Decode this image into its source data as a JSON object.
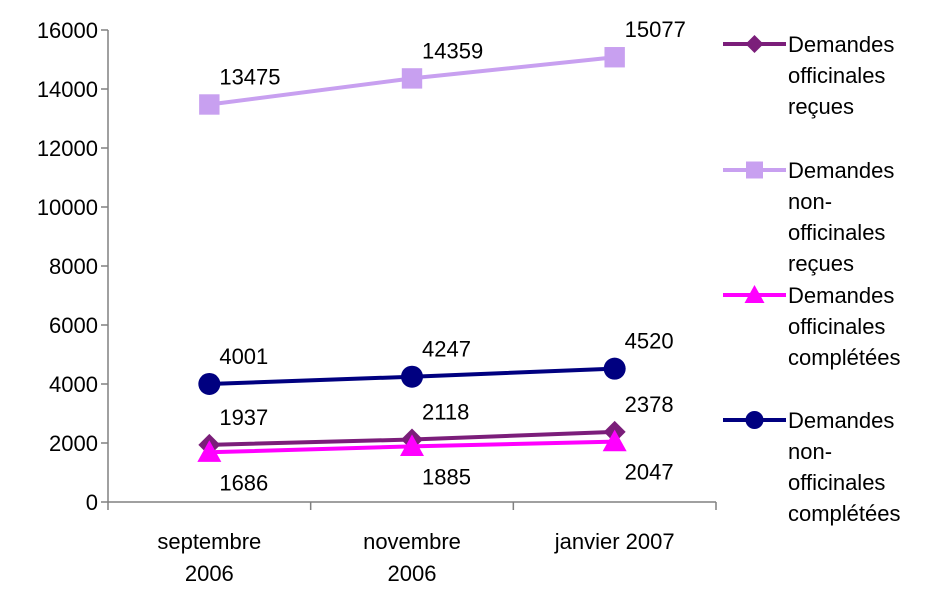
{
  "chart_data": {
    "type": "line",
    "title": "",
    "xlabel": "",
    "ylabel": "",
    "categories": [
      [
        "septembre",
        "2006"
      ],
      [
        "novembre",
        "2006"
      ],
      [
        "janvier 2007"
      ]
    ],
    "ylim": [
      0,
      16000
    ],
    "yticks": [
      0,
      2000,
      4000,
      6000,
      8000,
      10000,
      12000,
      14000,
      16000
    ],
    "grid": false,
    "legend_position": "right",
    "series": [
      {
        "name": [
          "Demandes",
          "officinales",
          "reçues"
        ],
        "values": [
          1937,
          2118,
          2378
        ],
        "color": "#7B1E7A",
        "marker": "diamond",
        "label_position": "above"
      },
      {
        "name": [
          "Demandes",
          "non-",
          "officinales",
          "reçues"
        ],
        "values": [
          13475,
          14359,
          15077
        ],
        "color": "#C8A0F0",
        "marker": "square",
        "label_position": "above"
      },
      {
        "name": [
          "Demandes",
          "officinales",
          "complétées"
        ],
        "values": [
          1686,
          1885,
          2047
        ],
        "color": "#FF00FF",
        "marker": "triangle",
        "label_position": "below"
      },
      {
        "name": [
          "Demandes",
          "non-",
          "officinales",
          "complétées"
        ],
        "values": [
          4001,
          4247,
          4520
        ],
        "color": "#000080",
        "marker": "circle",
        "label_position": "above"
      }
    ]
  }
}
